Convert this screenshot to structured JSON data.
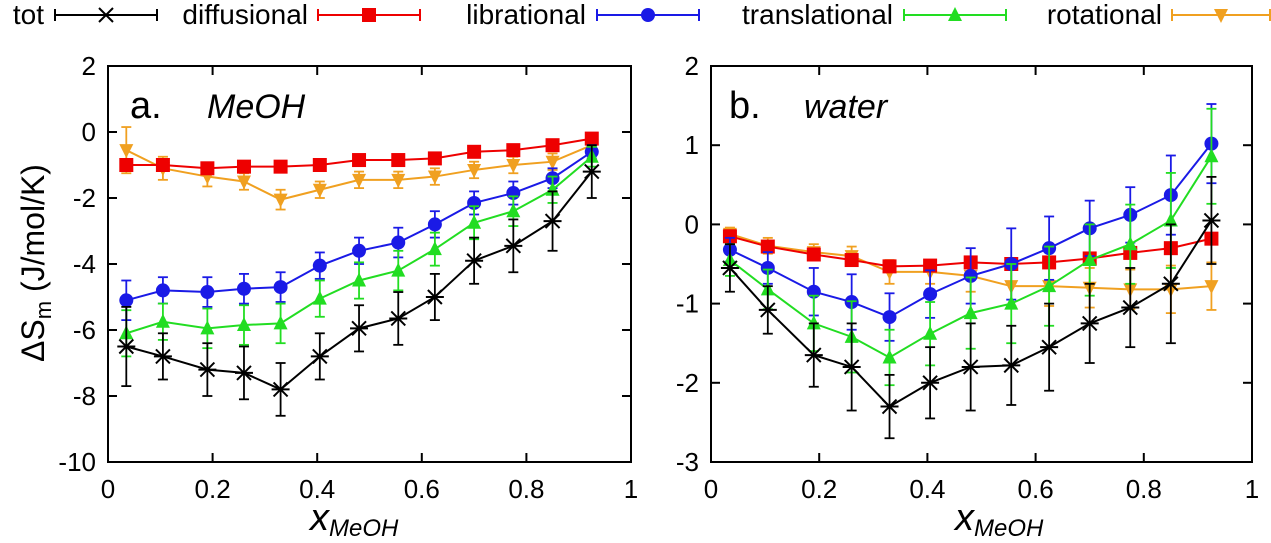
{
  "legend": [
    {
      "key": "tot",
      "label": "tot",
      "color": "#000000",
      "marker": "star"
    },
    {
      "key": "diffusional",
      "label": "diffusional",
      "color": "#ee0000",
      "marker": "square"
    },
    {
      "key": "librational",
      "label": "librational",
      "color": "#1a1ae6",
      "marker": "circle"
    },
    {
      "key": "translational",
      "label": "translational",
      "color": "#22dd22",
      "marker": "triangle-up"
    },
    {
      "key": "rotational",
      "label": "rotational",
      "color": "#f0a020",
      "marker": "triangle-down"
    }
  ],
  "axes": {
    "y_label_main": "ΔS",
    "y_label_sub": "m",
    "y_label_unit": " (J/mol/K)",
    "x_label_main": "x",
    "x_label_sub": "MeOH"
  },
  "chart_data": [
    {
      "type": "line",
      "panel_label": "a.",
      "panel_subtitle": "MeOH",
      "xlim": [
        0,
        1
      ],
      "ylim": [
        -10,
        2
      ],
      "x_ticks": [
        "0",
        "0.2",
        "0.4",
        "0.6",
        "0.8",
        "1"
      ],
      "y_ticks": [
        "-10",
        "-8",
        "-6",
        "-4",
        "-2",
        "0",
        "2"
      ],
      "x": [
        0.035,
        0.105,
        0.19,
        0.26,
        0.33,
        0.405,
        0.48,
        0.555,
        0.625,
        0.7,
        0.775,
        0.85,
        0.925
      ],
      "series": [
        {
          "name": "tot",
          "values": [
            -6.5,
            -6.8,
            -7.2,
            -7.3,
            -7.8,
            -6.8,
            -5.95,
            -5.65,
            -5.0,
            -3.9,
            -3.45,
            -2.7,
            -1.2
          ],
          "errors": [
            1.2,
            0.7,
            0.8,
            0.8,
            0.8,
            0.7,
            0.7,
            0.8,
            0.7,
            0.7,
            0.8,
            0.9,
            0.8
          ]
        },
        {
          "name": "diffusional",
          "values": [
            -1.0,
            -1.0,
            -1.1,
            -1.05,
            -1.05,
            -1.0,
            -0.85,
            -0.85,
            -0.8,
            -0.6,
            -0.55,
            -0.4,
            -0.2
          ],
          "errors": [
            0.15,
            0.15,
            0.15,
            0.1,
            0.1,
            0.1,
            0.1,
            0.1,
            0.1,
            0.1,
            0.1,
            0.1,
            0.1
          ]
        },
        {
          "name": "librational",
          "values": [
            -5.1,
            -4.8,
            -4.85,
            -4.75,
            -4.7,
            -4.05,
            -3.6,
            -3.35,
            -2.8,
            -2.15,
            -1.85,
            -1.4,
            -0.6
          ],
          "errors": [
            0.6,
            0.4,
            0.45,
            0.45,
            0.45,
            0.4,
            0.4,
            0.45,
            0.4,
            0.35,
            0.35,
            0.3,
            0.2
          ]
        },
        {
          "name": "translational",
          "values": [
            -6.1,
            -5.75,
            -5.95,
            -5.85,
            -5.8,
            -5.05,
            -4.5,
            -4.2,
            -3.55,
            -2.75,
            -2.4,
            -1.75,
            -0.75
          ],
          "errors": [
            0.7,
            0.55,
            0.6,
            0.6,
            0.6,
            0.55,
            0.55,
            0.6,
            0.5,
            0.5,
            0.45,
            0.4,
            0.3
          ]
        },
        {
          "name": "rotational",
          "values": [
            -0.55,
            -1.1,
            -1.35,
            -1.5,
            -2.05,
            -1.75,
            -1.45,
            -1.45,
            -1.35,
            -1.15,
            -1.0,
            -0.9,
            -0.4
          ],
          "errors": [
            0.7,
            0.35,
            0.3,
            0.25,
            0.3,
            0.25,
            0.25,
            0.25,
            0.25,
            0.25,
            0.25,
            0.25,
            0.2
          ]
        }
      ]
    },
    {
      "type": "line",
      "panel_label": "b.",
      "panel_subtitle": "water",
      "xlim": [
        0,
        1
      ],
      "ylim": [
        -3,
        2
      ],
      "x_ticks": [
        "0",
        "0.2",
        "0.4",
        "0.6",
        "0.8",
        "1"
      ],
      "y_ticks": [
        "-3",
        "-2",
        "-1",
        "0",
        "1",
        "2"
      ],
      "x": [
        0.035,
        0.105,
        0.19,
        0.26,
        0.33,
        0.405,
        0.48,
        0.555,
        0.625,
        0.7,
        0.775,
        0.85,
        0.925
      ],
      "series": [
        {
          "name": "tot",
          "values": [
            -0.55,
            -1.08,
            -1.65,
            -1.8,
            -2.3,
            -2.0,
            -1.8,
            -1.78,
            -1.55,
            -1.25,
            -1.05,
            -0.75,
            0.05
          ],
          "errors": [
            0.3,
            0.3,
            0.4,
            0.55,
            0.4,
            0.45,
            0.55,
            0.5,
            0.55,
            0.5,
            0.5,
            0.75,
            0.55
          ]
        },
        {
          "name": "diffusional",
          "values": [
            -0.15,
            -0.28,
            -0.38,
            -0.45,
            -0.53,
            -0.52,
            -0.48,
            -0.5,
            -0.48,
            -0.43,
            -0.36,
            -0.3,
            -0.18
          ],
          "errors": [
            0.05,
            0.05,
            0.06,
            0.06,
            0.06,
            0.06,
            0.07,
            0.07,
            0.07,
            0.07,
            0.07,
            0.07,
            0.07
          ]
        },
        {
          "name": "librational",
          "values": [
            -0.32,
            -0.55,
            -0.85,
            -0.98,
            -1.17,
            -0.88,
            -0.65,
            -0.5,
            -0.3,
            -0.05,
            0.12,
            0.37,
            1.02
          ],
          "errors": [
            0.15,
            0.2,
            0.3,
            0.35,
            0.3,
            0.3,
            0.35,
            0.45,
            0.4,
            0.35,
            0.35,
            0.5,
            0.5
          ]
        },
        {
          "name": "translational",
          "values": [
            -0.45,
            -0.82,
            -1.25,
            -1.42,
            -1.68,
            -1.38,
            -1.12,
            -1.0,
            -0.78,
            -0.45,
            -0.25,
            0.05,
            0.86
          ],
          "errors": [
            0.2,
            0.25,
            0.35,
            0.45,
            0.35,
            0.4,
            0.45,
            0.5,
            0.5,
            0.45,
            0.5,
            0.6,
            0.6
          ]
        },
        {
          "name": "rotational",
          "values": [
            -0.12,
            -0.27,
            -0.35,
            -0.4,
            -0.6,
            -0.6,
            -0.65,
            -0.78,
            -0.78,
            -0.8,
            -0.82,
            -0.82,
            -0.78
          ],
          "errors": [
            0.08,
            0.1,
            0.1,
            0.12,
            0.15,
            0.15,
            0.2,
            0.25,
            0.25,
            0.25,
            0.25,
            0.3,
            0.3
          ]
        }
      ]
    }
  ]
}
